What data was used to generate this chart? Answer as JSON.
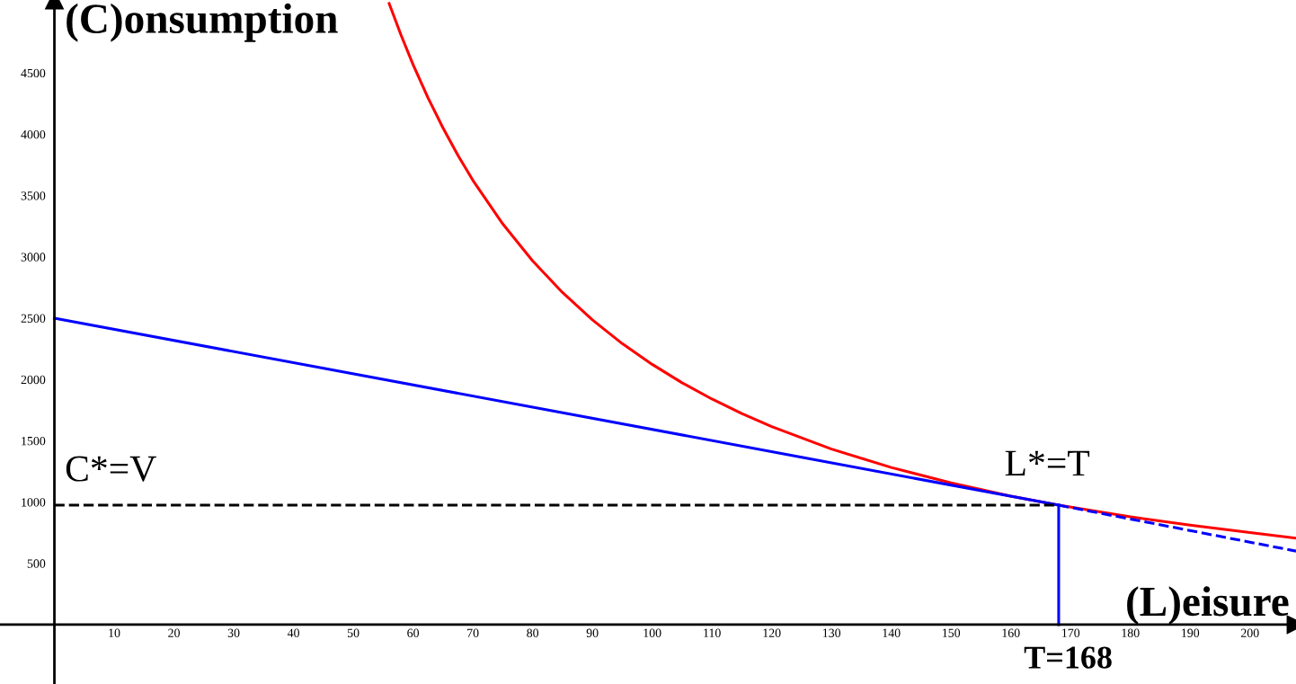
{
  "chart_data": {
    "type": "line",
    "xlabel": "(L)eisure",
    "ylabel": "(C)onsumption",
    "xlim": [
      -9.1,
      207.7
    ],
    "ylim": [
      -484,
      5095
    ],
    "xticks": [
      10,
      20,
      30,
      40,
      50,
      60,
      70,
      80,
      90,
      100,
      110,
      120,
      130,
      140,
      150,
      160,
      170,
      180,
      190,
      200
    ],
    "yticks": [
      500,
      1000,
      1500,
      2000,
      2500,
      3000,
      3500,
      4000,
      4500
    ],
    "grid": false,
    "legend": false,
    "marker": "none",
    "series": [
      {
        "color": "#ff0000",
        "line_style": "solid",
        "x": [
          56,
          58,
          60,
          62.5,
          65,
          67.5,
          70,
          75,
          80,
          85,
          90,
          95,
          100,
          105,
          110,
          115,
          120,
          130,
          140,
          150,
          160,
          168,
          180,
          190,
          200,
          207.7
        ],
        "values": [
          5066,
          4807,
          4568,
          4297,
          4052,
          3829,
          3625,
          3269,
          2967,
          2709,
          2486,
          2292,
          2123,
          1973,
          1840,
          1722,
          1615,
          1432,
          1282,
          1156,
          1049,
          975,
          879,
          811,
          751,
          705
        ]
      },
      {
        "color": "#0000ff",
        "line_style": "solid",
        "x": [
          0,
          168
        ],
        "values": [
          2500,
          975
        ]
      },
      {
        "color": "#0000ff",
        "line_style": "dashed",
        "x": [
          168,
          207.7
        ],
        "values": [
          975,
          600
        ]
      },
      {
        "color": "#000000",
        "line_style": "dashed",
        "x": [
          0,
          168
        ],
        "values": [
          975,
          975
        ]
      },
      {
        "color": "#0000ff",
        "line_style": "solid",
        "x": [
          168,
          168
        ],
        "values": [
          0,
          975
        ]
      }
    ],
    "annotations": [
      "C*=V",
      "L*=T",
      "T=168"
    ]
  }
}
